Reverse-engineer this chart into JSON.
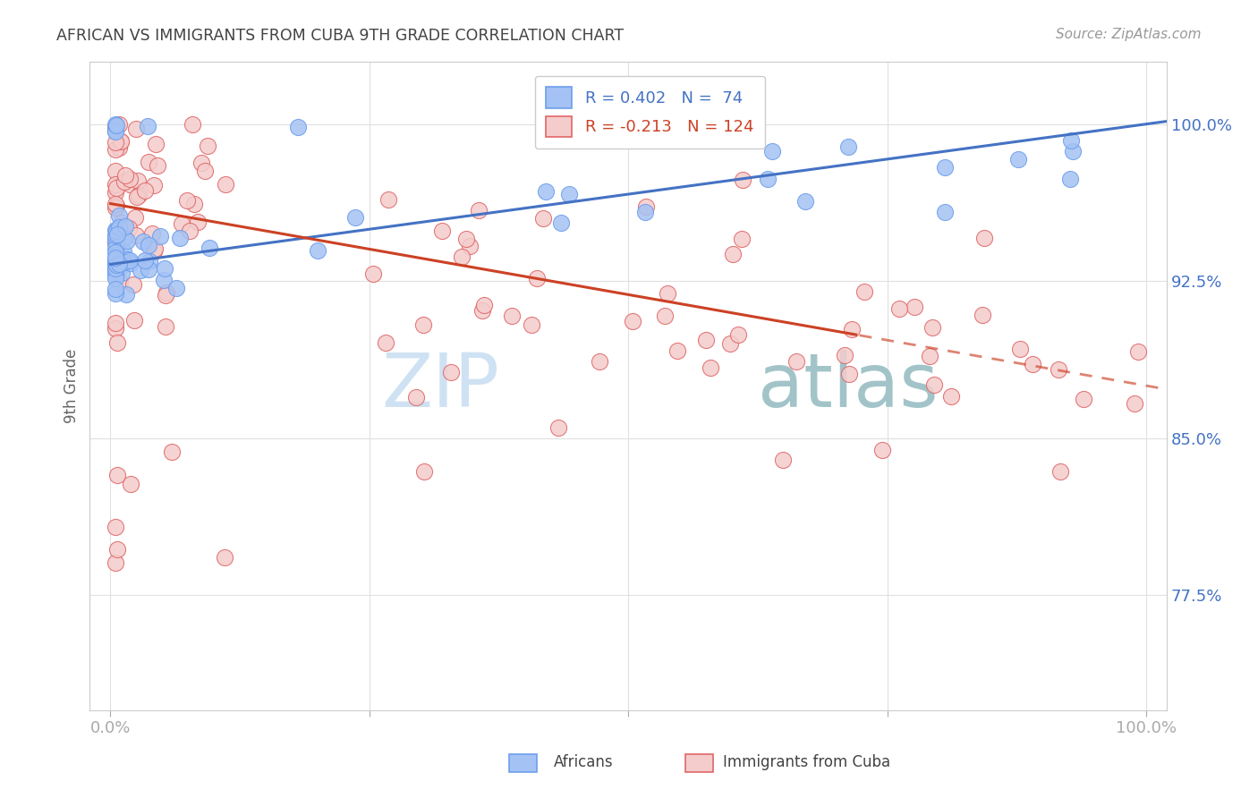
{
  "title": "AFRICAN VS IMMIGRANTS FROM CUBA 9TH GRADE CORRELATION CHART",
  "source": "Source: ZipAtlas.com",
  "ylabel": "9th Grade",
  "r_african": 0.402,
  "n_african": 74,
  "r_cuba": -0.213,
  "n_cuba": 124,
  "color_african_face": "#a4c2f4",
  "color_african_edge": "#6d9eeb",
  "color_cuba_face": "#f4cccc",
  "color_cuba_edge": "#e06666",
  "color_trend_african": "#4472c4",
  "color_trend_cuba": "#cc4125",
  "color_title": "#434343",
  "color_source": "#999999",
  "color_yticks": "#4472c4",
  "color_xticks": "#434343",
  "watermark_zip": "#cfe2f3",
  "watermark_atlas": "#a2c4c9",
  "background": "#ffffff",
  "legend_box_color_african": "#a4c2f4",
  "legend_box_color_cuba": "#f4cccc",
  "xlim": [
    -0.02,
    1.02
  ],
  "ylim": [
    0.72,
    1.03
  ],
  "yticks": [
    0.775,
    0.85,
    0.925,
    1.0
  ],
  "ytick_labels": [
    "77.5%",
    "85.0%",
    "92.5%",
    "100.0%"
  ],
  "trend_af_x0": 0.0,
  "trend_af_y0": 0.933,
  "trend_af_x1": 1.0,
  "trend_af_y1": 1.0,
  "trend_cu_x0": 0.0,
  "trend_cu_y0": 0.962,
  "trend_cu_x1": 1.0,
  "trend_cu_y1": 0.875,
  "trend_cu_dash_start": 0.72
}
